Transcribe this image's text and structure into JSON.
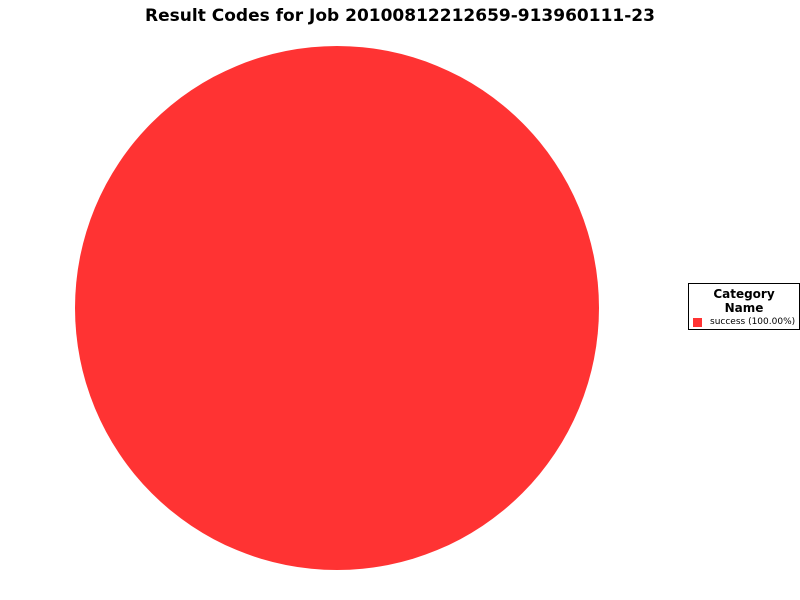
{
  "chart_data": {
    "type": "pie",
    "title": "Result Codes for Job 20100812212659-913960111-23",
    "slices": [
      {
        "label": "success",
        "value": 100.0,
        "percent_label": "success (100.00%)",
        "color": "#FF3333"
      }
    ],
    "legend": {
      "title": "Category Name",
      "placement": "right"
    }
  }
}
